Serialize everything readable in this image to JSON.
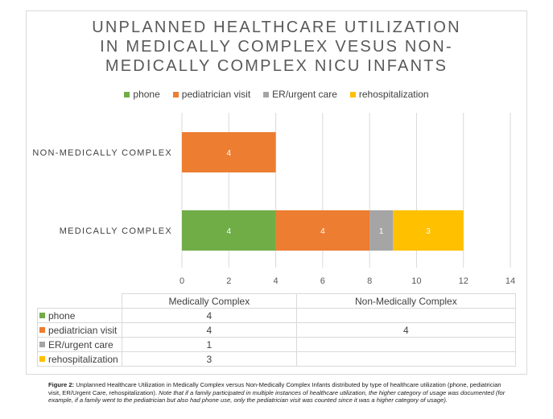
{
  "chart_data": {
    "type": "bar",
    "orientation": "horizontal",
    "stacked": true,
    "title_lines": [
      "UNPLANNED HEALTHCARE UTILIZATION",
      "IN MEDICALLY COMPLEX VESUS NON-",
      "MEDICALLY COMPLEX NICU INFANTS"
    ],
    "categories_display": [
      "NON-MEDICALLY COMPLEX",
      "MEDICALLY COMPLEX"
    ],
    "categories_table": [
      "Medically Complex",
      "Non-Medically Complex"
    ],
    "series": [
      {
        "name": "phone",
        "color": "#70ad47",
        "values": [
          4,
          null
        ]
      },
      {
        "name": "pediatrician visit",
        "color": "#ed7d31",
        "values": [
          4,
          4
        ]
      },
      {
        "name": "ER/urgent care",
        "color": "#a5a5a5",
        "values": [
          1,
          null
        ]
      },
      {
        "name": "rehospitalization",
        "color": "#ffc000",
        "values": [
          3,
          null
        ]
      }
    ],
    "xlim": [
      0,
      14
    ],
    "xticks": [
      "0",
      "2",
      "4",
      "6",
      "8",
      "10",
      "12",
      "14"
    ],
    "grid": true,
    "legend_position": "top",
    "data_table": true
  },
  "caption": {
    "label": "Figure 2:",
    "text": " Unplanned Healthcare Utilization in Medically Complex versus Non-Medically Complex Infants distributed by type of healthcare utilization (phone, pediatrician visit, ER/Urgent Care, rehospitalization). ",
    "note": "Note that if a family participated in multiple instances of healthcare utilization, the higher category of usage was documented (for example, if a family went to the pediatrician but also had phone use, only the pediatrician visit was counted since it was a higher category of usage)."
  }
}
